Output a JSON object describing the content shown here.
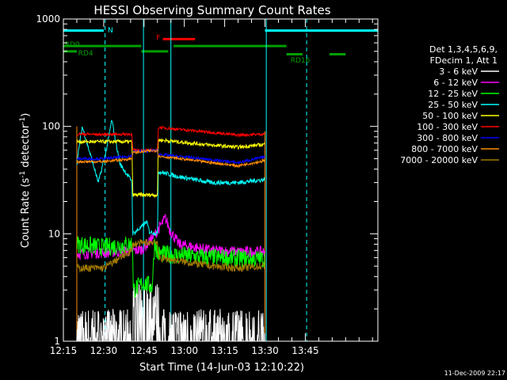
{
  "chart_data": {
    "type": "line",
    "title": "HESSI Observing Summary Count Rates",
    "xlabel": "Start Time (14-Jun-03 12:10:22)",
    "ylabel_main": "Count Rate (s",
    "ylabel_sup1": "-1",
    "ylabel_mid": " detector",
    "ylabel_sup2": "-1",
    "ylabel_end": ")",
    "yscale": "log",
    "ylim": [
      1,
      1000
    ],
    "xlim_min": [
      735,
      852
    ],
    "x_ticks": [
      {
        "min": 735,
        "label": "12:15"
      },
      {
        "min": 750,
        "label": "12:30"
      },
      {
        "min": 765,
        "label": "12:45"
      },
      {
        "min": 780,
        "label": "13:00"
      },
      {
        "min": 795,
        "label": "13:15"
      },
      {
        "min": 810,
        "label": "13:30"
      },
      {
        "min": 825,
        "label": "13:45"
      }
    ],
    "y_ticks": [
      {
        "value": 1,
        "label": "1"
      },
      {
        "value": 10,
        "label": "10"
      },
      {
        "value": 100,
        "label": "100"
      },
      {
        "value": 1000,
        "label": "1000"
      }
    ],
    "legend_header": [
      "Det 1,3,4,5,6,9,",
      "FDecim 1, Att 1"
    ],
    "legend_position": "right",
    "series": [
      {
        "name": "3 - 6 keV",
        "color": "#ffffff",
        "noise": 0.9,
        "x": [
          740.0,
          760.5,
          760.8,
          790.0,
          791.0,
          809.9
        ],
        "y": [
          1.5,
          1.5,
          1.5,
          1.5,
          1.5,
          1.5
        ]
      },
      {
        "name": "6 - 12 keV",
        "color": "#ff00ff",
        "noise": 0.12,
        "x": [
          740.0,
          755.0,
          762.0,
          764.5,
          768.0,
          773.0,
          774.5,
          778.0,
          790.0,
          800.0,
          809.9
        ],
        "y": [
          6.5,
          6.8,
          7.0,
          7.2,
          9.0,
          14.0,
          11.0,
          8.0,
          7.0,
          6.8,
          6.8
        ]
      },
      {
        "name": "12 - 25 keV",
        "color": "#00ff00",
        "noise": 0.2,
        "x": [
          740.0,
          750.0,
          760.0,
          760.8,
          761.0,
          765.0,
          768.0,
          769.0,
          770.0,
          790.0,
          809.9
        ],
        "y": [
          8.0,
          7.5,
          8.0,
          8.0,
          3.0,
          3.5,
          3.2,
          8.5,
          6.5,
          6.0,
          5.8
        ]
      },
      {
        "name": "25 - 50 keV",
        "color": "#00ffff",
        "noise": 0.05,
        "x": [
          740.0,
          742.0,
          745.0,
          748.0,
          751.0,
          753.0,
          756.0,
          760.0,
          760.5,
          760.8,
          764.0,
          766.0,
          767.0,
          770.0,
          770.3,
          778.0,
          790.0,
          800.0,
          809.9
        ],
        "y": [
          45.0,
          100.0,
          55.0,
          30.0,
          60.0,
          115.0,
          45.0,
          32.0,
          32.0,
          10.0,
          11.5,
          13.0,
          10.5,
          10.0,
          38.0,
          34.0,
          30.0,
          30.0,
          32.0
        ]
      },
      {
        "name": "50 - 100 keV",
        "color": "#ffff00",
        "noise": 0.04,
        "x": [
          740.0,
          750.0,
          760.5,
          760.8,
          770.0,
          770.3,
          790.0,
          800.0,
          809.9
        ],
        "y": [
          72.0,
          72.0,
          72.0,
          23.0,
          23.0,
          75.0,
          67.0,
          64.0,
          68.0
        ]
      },
      {
        "name": "100 - 300 keV",
        "color": "#ff0000",
        "noise": 0.03,
        "x": [
          740.0,
          750.0,
          760.5,
          760.8,
          770.0,
          770.3,
          790.0,
          800.0,
          809.9
        ],
        "y": [
          85.0,
          84.0,
          85.0,
          60.0,
          60.0,
          98.0,
          88.0,
          83.0,
          85.0
        ]
      },
      {
        "name": "300 - 800 keV",
        "color": "#0000ff",
        "noise": 0.03,
        "x": [
          740.0,
          750.0,
          760.5,
          760.8,
          770.0,
          770.3,
          790.0,
          800.0,
          809.9
        ],
        "y": [
          50.0,
          50.0,
          53.0,
          58.0,
          60.0,
          55.0,
          49.0,
          46.0,
          52.0
        ]
      },
      {
        "name": "800 - 7000 keV",
        "color": "#ff8c00",
        "noise": 0.03,
        "x": [
          740.0,
          750.0,
          760.5,
          760.8,
          770.0,
          770.3,
          790.0,
          800.0,
          809.9
        ],
        "y": [
          47.0,
          47.0,
          50.0,
          57.0,
          60.0,
          53.0,
          46.0,
          43.0,
          48.0
        ]
      },
      {
        "name": "7000 - 20000 keV",
        "color": "#a07800",
        "noise": 0.08,
        "x": [
          740.0,
          750.0,
          760.5,
          760.8,
          770.0,
          770.3,
          790.0,
          800.0,
          809.9
        ],
        "y": [
          4.8,
          4.8,
          7.0,
          8.0,
          8.5,
          6.0,
          5.0,
          4.8,
          5.0
        ]
      }
    ],
    "flag_bars": [
      {
        "label": "N",
        "color": "#00ffff",
        "level": 780,
        "label_level": 800,
        "segments": [
          [
            735,
            750
          ],
          [
            810,
            852
          ]
        ]
      },
      {
        "label": "F",
        "color": "#ff0000",
        "level": 650,
        "label_level": 680,
        "segments": [
          [
            772,
            784
          ]
        ]
      },
      {
        "label": "RD0",
        "color": "#00a000",
        "level": 560,
        "label_level": 590,
        "segments": [
          [
            735,
            764
          ],
          [
            776,
            818
          ]
        ]
      },
      {
        "label": "RD4",
        "color": "#00a000",
        "level": 500,
        "label_level": 490,
        "segments": [
          [
            735,
            740
          ],
          [
            764,
            774
          ]
        ]
      },
      {
        "label": "RD16",
        "color": "#00a000",
        "level": 470,
        "label_level": 420,
        "segments": [
          [
            818,
            824
          ],
          [
            834,
            840
          ]
        ]
      }
    ],
    "vlines": [
      {
        "min": 750.5,
        "color": "#00ffff",
        "style": "dashed"
      },
      {
        "min": 764.8,
        "color": "#00ffff",
        "style": "solid"
      },
      {
        "min": 775.0,
        "color": "#00ffff",
        "style": "solid"
      },
      {
        "min": 810.5,
        "color": "#00ffff",
        "style": "solid"
      },
      {
        "min": 825.5,
        "color": "#00ffff",
        "style": "dashed"
      }
    ],
    "data_gap_edges": [
      740.0,
      810.0
    ]
  },
  "footer": {
    "timestamp": "11-Dec-2009 22:17"
  }
}
